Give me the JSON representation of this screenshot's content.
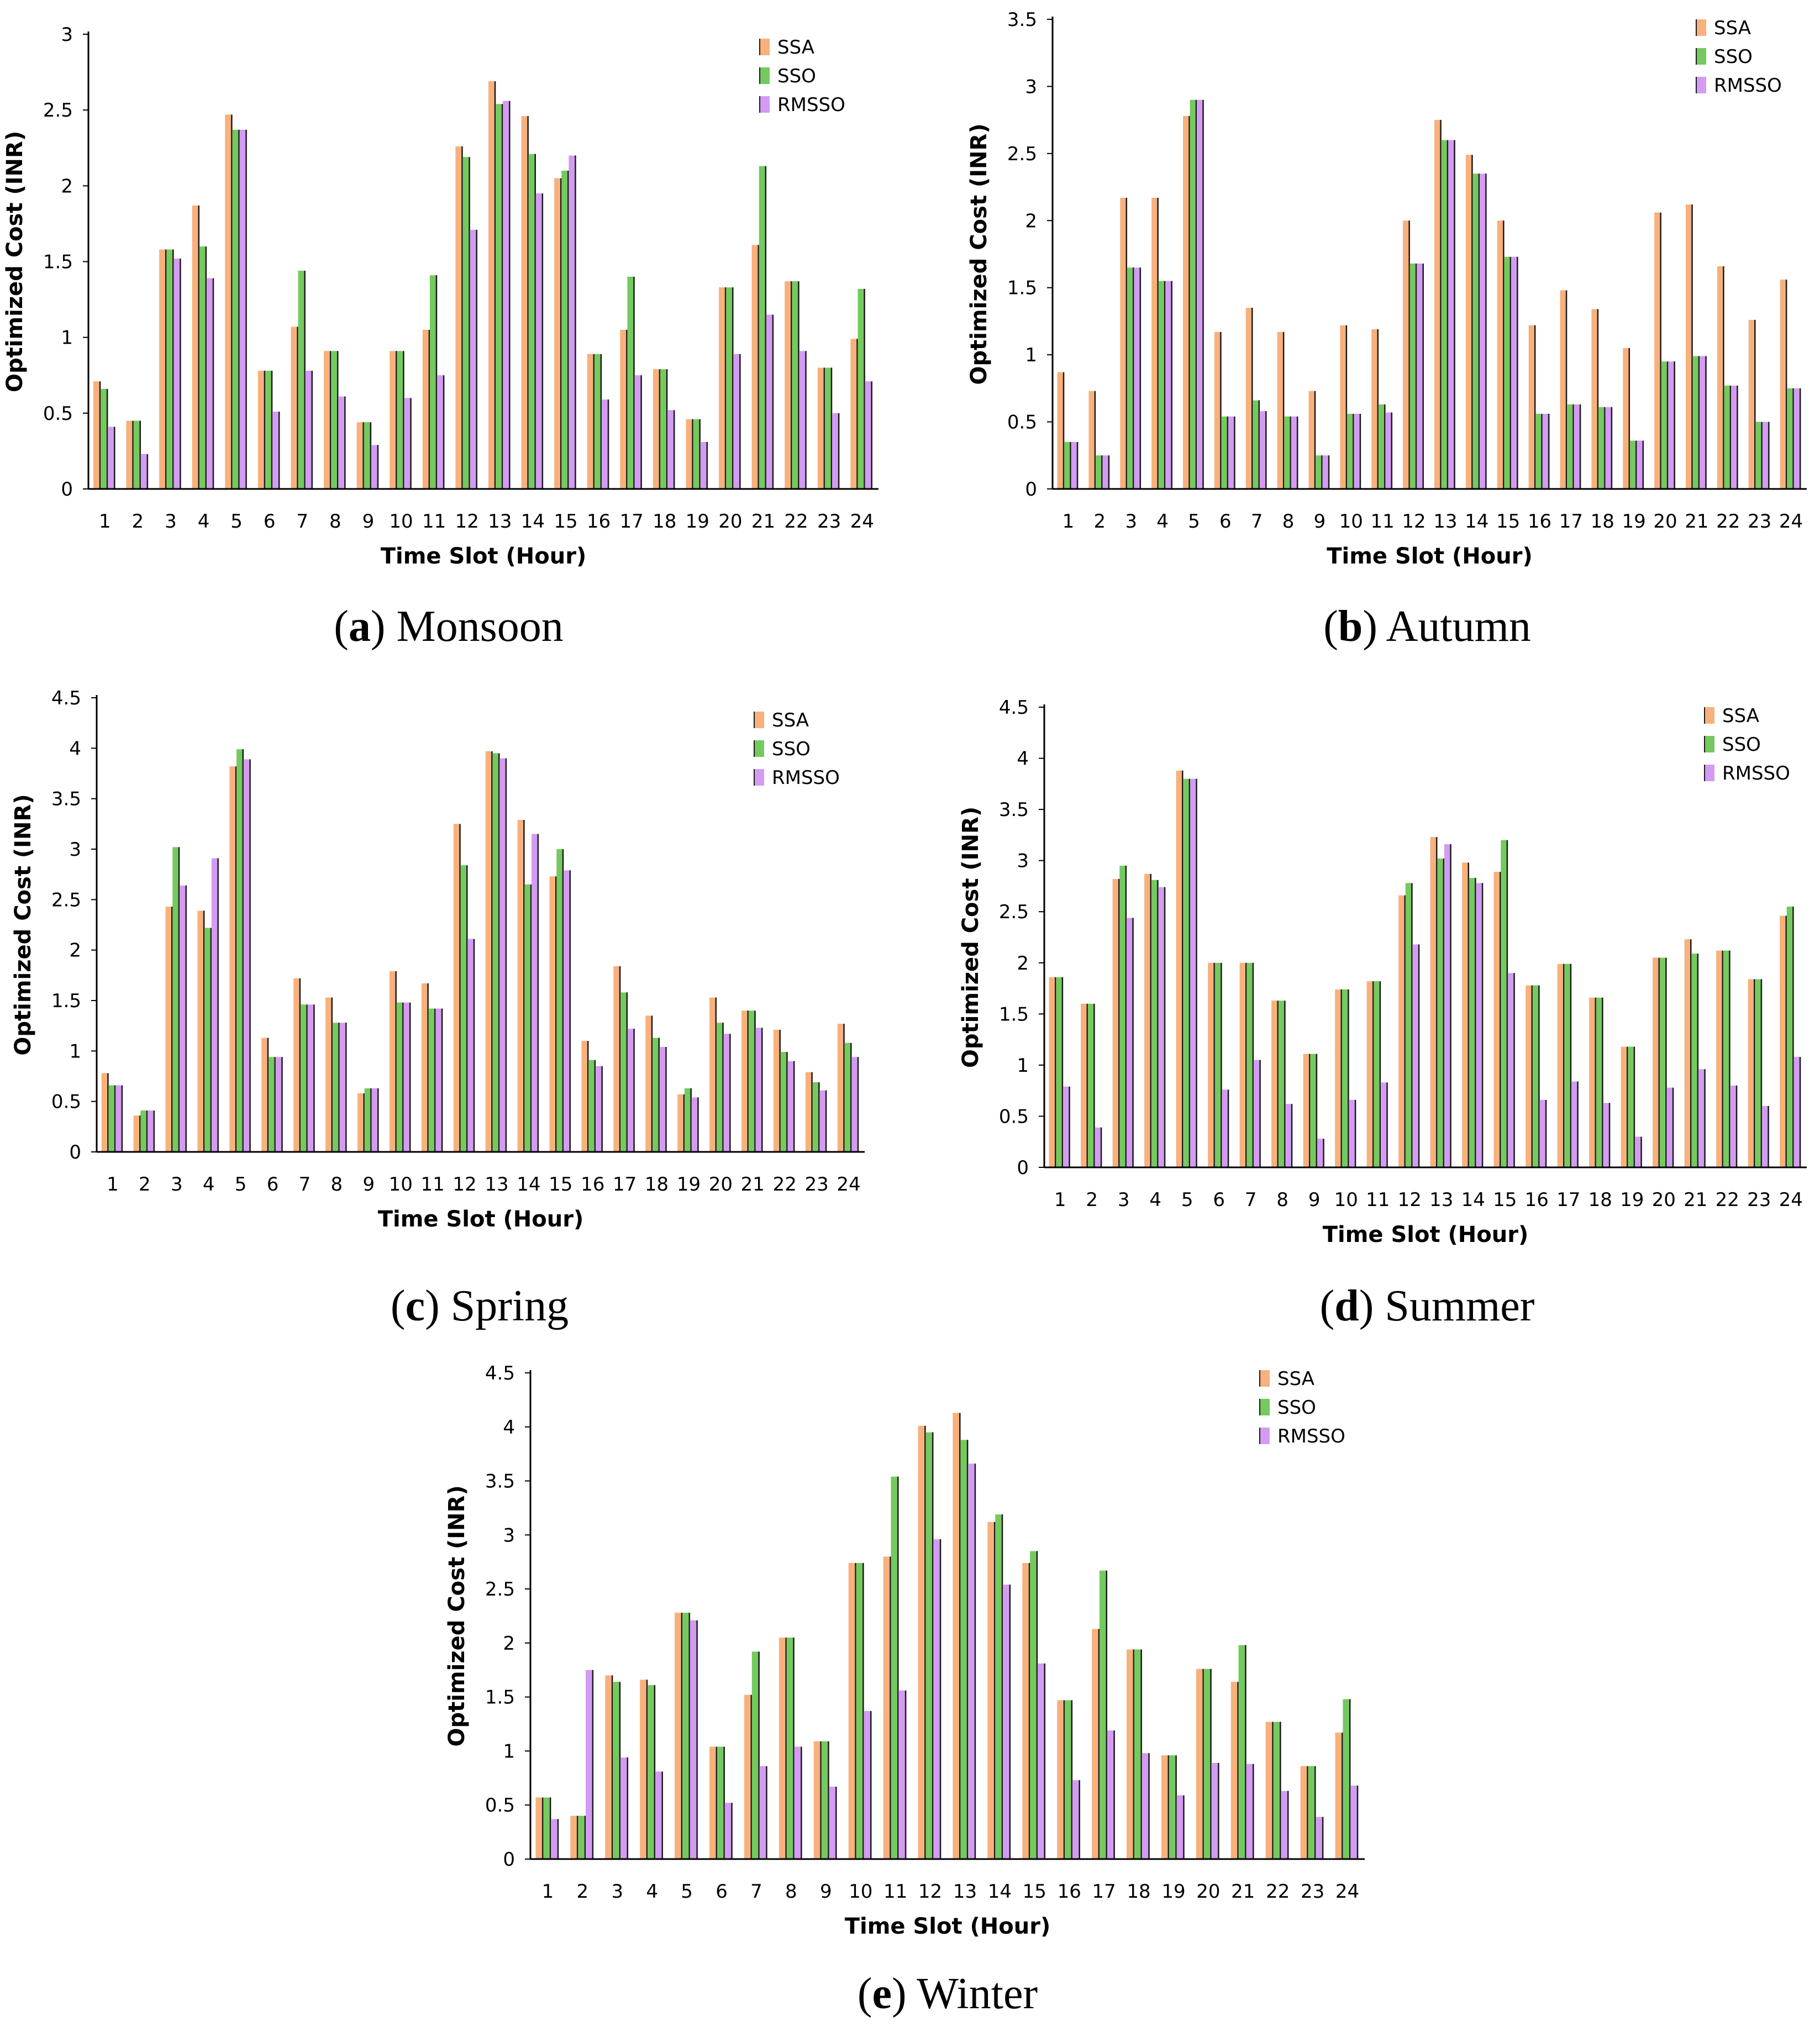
{
  "colors": {
    "SSA": "#f8b07c",
    "SSO": "#74c95f",
    "RMSSO": "#d39bf2"
  },
  "chart_data": [
    {
      "type": "bar",
      "panel_letter": "a",
      "title": "Monsoon",
      "xlabel": "Time Slot (Hour)",
      "ylabel": "Optimized Cost (INR)",
      "ylim": [
        0,
        3
      ],
      "yticks": [
        "0",
        "0.5",
        "1",
        "1.5",
        "2",
        "2.5",
        "3"
      ],
      "categories": [
        "1",
        "2",
        "3",
        "4",
        "5",
        "6",
        "7",
        "8",
        "9",
        "10",
        "11",
        "12",
        "13",
        "14",
        "15",
        "16",
        "17",
        "18",
        "19",
        "20",
        "21",
        "22",
        "23",
        "24"
      ],
      "series": [
        {
          "name": "SSA",
          "values": [
            0.71,
            0.45,
            1.58,
            1.87,
            2.47,
            0.78,
            1.07,
            0.91,
            0.44,
            0.91,
            1.05,
            2.26,
            2.69,
            2.46,
            2.05,
            0.89,
            1.05,
            0.79,
            0.46,
            1.33,
            1.61,
            1.37,
            0.8,
            0.99
          ]
        },
        {
          "name": "SSO",
          "values": [
            0.66,
            0.45,
            1.58,
            1.6,
            2.37,
            0.78,
            1.44,
            0.91,
            0.44,
            0.91,
            1.41,
            2.19,
            2.54,
            2.21,
            2.1,
            0.89,
            1.4,
            0.79,
            0.46,
            1.33,
            2.13,
            1.37,
            0.8,
            1.32
          ]
        },
        {
          "name": "RMSSO",
          "values": [
            0.41,
            0.23,
            1.52,
            1.39,
            2.37,
            0.51,
            0.78,
            0.61,
            0.29,
            0.6,
            0.75,
            1.71,
            2.56,
            1.95,
            2.2,
            0.59,
            0.75,
            0.52,
            0.31,
            0.89,
            1.15,
            0.91,
            0.5,
            0.71
          ]
        }
      ]
    },
    {
      "type": "bar",
      "panel_letter": "b",
      "title": "Autumn",
      "xlabel": "Time Slot (Hour)",
      "ylabel": "Optimized Cost (INR)",
      "ylim": [
        0,
        3.5
      ],
      "yticks": [
        "0",
        "0.5",
        "1",
        "1.5",
        "2",
        "2.5",
        "3",
        "3.5"
      ],
      "categories": [
        "1",
        "2",
        "3",
        "4",
        "5",
        "6",
        "7",
        "8",
        "9",
        "10",
        "11",
        "12",
        "13",
        "14",
        "15",
        "16",
        "17",
        "18",
        "19",
        "20",
        "21",
        "22",
        "23",
        "24"
      ],
      "series": [
        {
          "name": "SSA",
          "values": [
            0.87,
            0.73,
            2.17,
            2.17,
            2.78,
            1.17,
            1.35,
            1.17,
            0.73,
            1.22,
            1.19,
            2.0,
            2.75,
            2.49,
            2.0,
            1.22,
            1.48,
            1.34,
            1.05,
            2.06,
            2.12,
            1.66,
            1.26,
            1.56
          ]
        },
        {
          "name": "SSO",
          "values": [
            0.35,
            0.25,
            1.65,
            1.55,
            2.9,
            0.54,
            0.66,
            0.54,
            0.25,
            0.56,
            0.63,
            1.68,
            2.6,
            2.35,
            1.73,
            0.56,
            0.63,
            0.61,
            0.36,
            0.95,
            0.99,
            0.77,
            0.5,
            0.75
          ]
        },
        {
          "name": "RMSSO",
          "values": [
            0.35,
            0.25,
            1.65,
            1.55,
            2.9,
            0.54,
            0.58,
            0.54,
            0.25,
            0.56,
            0.57,
            1.68,
            2.6,
            2.35,
            1.73,
            0.56,
            0.63,
            0.61,
            0.36,
            0.95,
            0.99,
            0.77,
            0.5,
            0.75
          ]
        }
      ]
    },
    {
      "type": "bar",
      "panel_letter": "c",
      "title": "Spring",
      "xlabel": "Time Slot (Hour)",
      "ylabel": "Optimized Cost (INR)",
      "ylim": [
        0,
        4.5
      ],
      "yticks": [
        "0",
        "0.5",
        "1",
        "1.5",
        "2",
        "2.5",
        "3",
        "3.5",
        "4",
        "4.5"
      ],
      "categories": [
        "1",
        "2",
        "3",
        "4",
        "5",
        "6",
        "7",
        "8",
        "9",
        "10",
        "11",
        "12",
        "13",
        "14",
        "15",
        "16",
        "17",
        "18",
        "19",
        "20",
        "21",
        "22",
        "23",
        "24"
      ],
      "series": [
        {
          "name": "SSA",
          "values": [
            0.78,
            0.36,
            2.43,
            2.39,
            3.82,
            1.13,
            1.72,
            1.53,
            0.58,
            1.79,
            1.67,
            3.25,
            3.97,
            3.29,
            2.73,
            1.1,
            1.84,
            1.35,
            0.57,
            1.53,
            1.4,
            1.21,
            0.79,
            1.27
          ]
        },
        {
          "name": "SSO",
          "values": [
            0.66,
            0.41,
            3.02,
            2.22,
            3.99,
            0.94,
            1.46,
            1.28,
            0.63,
            1.48,
            1.42,
            2.84,
            3.95,
            2.65,
            3.0,
            0.91,
            1.58,
            1.13,
            0.63,
            1.28,
            1.4,
            0.99,
            0.69,
            1.08
          ]
        },
        {
          "name": "RMSSO",
          "values": [
            0.66,
            0.41,
            2.64,
            2.91,
            3.89,
            0.94,
            1.46,
            1.28,
            0.63,
            1.48,
            1.42,
            2.11,
            3.9,
            3.15,
            2.79,
            0.85,
            1.22,
            1.04,
            0.54,
            1.17,
            1.23,
            0.9,
            0.61,
            0.94
          ]
        }
      ]
    },
    {
      "type": "bar",
      "panel_letter": "d",
      "title": "Summer",
      "xlabel": "Time Slot (Hour)",
      "ylabel": "Optimized Cost (INR)",
      "ylim": [
        0,
        4.5
      ],
      "yticks": [
        "0",
        "0.5",
        "1",
        "1.5",
        "2",
        "2.5",
        "3",
        "3.5",
        "4",
        "4.5"
      ],
      "categories": [
        "1",
        "2",
        "3",
        "4",
        "5",
        "6",
        "7",
        "8",
        "9",
        "10",
        "11",
        "12",
        "13",
        "14",
        "15",
        "16",
        "17",
        "18",
        "19",
        "20",
        "21",
        "22",
        "23",
        "24"
      ],
      "series": [
        {
          "name": "SSA",
          "values": [
            1.86,
            1.6,
            2.82,
            2.87,
            3.88,
            2.0,
            2.0,
            1.63,
            1.11,
            1.74,
            1.82,
            2.66,
            3.23,
            2.98,
            2.89,
            1.78,
            1.99,
            1.66,
            1.18,
            2.05,
            2.23,
            2.12,
            1.84,
            2.46
          ]
        },
        {
          "name": "SSO",
          "values": [
            1.86,
            1.6,
            2.95,
            2.81,
            3.8,
            2.0,
            2.0,
            1.63,
            1.11,
            1.74,
            1.82,
            2.78,
            3.02,
            2.83,
            3.2,
            1.78,
            1.99,
            1.66,
            1.18,
            2.05,
            2.09,
            2.12,
            1.84,
            2.55
          ]
        },
        {
          "name": "RMSSO",
          "values": [
            0.79,
            0.39,
            2.44,
            2.74,
            3.8,
            0.76,
            1.05,
            0.62,
            0.28,
            0.66,
            0.83,
            2.18,
            3.16,
            2.78,
            1.9,
            0.66,
            0.84,
            0.63,
            0.3,
            0.78,
            0.96,
            0.8,
            0.6,
            1.08
          ]
        }
      ]
    },
    {
      "type": "bar",
      "panel_letter": "e",
      "title": "Winter",
      "xlabel": "Time Slot (Hour)",
      "ylabel": "Optimized Cost (INR)",
      "ylim": [
        0,
        4.5
      ],
      "yticks": [
        "0",
        "0.5",
        "1",
        "1.5",
        "2",
        "2.5",
        "3",
        "3.5",
        "4",
        "4.5"
      ],
      "categories": [
        "1",
        "2",
        "3",
        "4",
        "5",
        "6",
        "7",
        "8",
        "9",
        "10",
        "11",
        "12",
        "13",
        "14",
        "15",
        "16",
        "17",
        "18",
        "19",
        "20",
        "21",
        "22",
        "23",
        "24"
      ],
      "series": [
        {
          "name": "SSA",
          "values": [
            0.57,
            0.4,
            1.7,
            1.66,
            2.28,
            1.04,
            1.52,
            2.05,
            1.09,
            2.74,
            2.8,
            4.01,
            4.13,
            3.12,
            2.74,
            1.47,
            2.13,
            1.94,
            0.96,
            1.76,
            1.64,
            1.27,
            0.86,
            1.17
          ]
        },
        {
          "name": "SSO",
          "values": [
            0.57,
            0.4,
            1.64,
            1.61,
            2.28,
            1.04,
            1.92,
            2.05,
            1.09,
            2.74,
            3.54,
            3.95,
            3.88,
            3.19,
            2.85,
            1.47,
            2.67,
            1.94,
            0.96,
            1.76,
            1.98,
            1.27,
            0.86,
            1.48
          ]
        },
        {
          "name": "RMSSO",
          "values": [
            0.37,
            1.75,
            0.94,
            0.81,
            2.21,
            0.52,
            0.86,
            1.04,
            0.67,
            1.37,
            1.56,
            2.96,
            3.66,
            2.54,
            1.81,
            0.73,
            1.19,
            0.98,
            0.59,
            0.89,
            0.88,
            0.63,
            0.39,
            0.68
          ]
        }
      ]
    }
  ]
}
